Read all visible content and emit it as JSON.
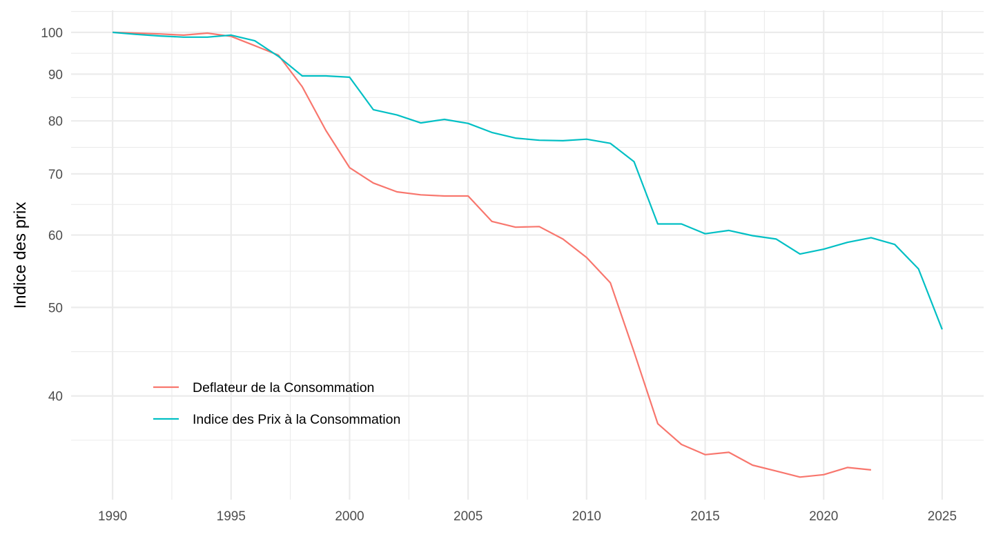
{
  "chart_data": {
    "type": "line",
    "title": "",
    "xlabel": "",
    "ylabel": "Indice des prix",
    "y_scale": "log",
    "xlim": [
      1988.25,
      2026.75
    ],
    "ylim": [
      30.8,
      105.7
    ],
    "x_ticks": [
      1990,
      1995,
      2000,
      2005,
      2010,
      2015,
      2020,
      2025
    ],
    "x_tick_labels": [
      "1990",
      "1995",
      "2000",
      "2005",
      "2010",
      "2015",
      "2020",
      "2025"
    ],
    "y_ticks": [
      40,
      50,
      60,
      70,
      80,
      90,
      100
    ],
    "y_tick_labels": [
      "40",
      "50",
      "60",
      "70",
      "80",
      "90",
      "100"
    ],
    "grid": true,
    "legend_position": "bottom-left (inside)",
    "series": [
      {
        "name": "Deflateur de la Consommation",
        "color": "#F8766D",
        "x": [
          1990,
          1991,
          1992,
          1993,
          1994,
          1995,
          1996,
          1997,
          1998,
          1999,
          2000,
          2001,
          2002,
          2003,
          2004,
          2005,
          2006,
          2007,
          2008,
          2009,
          2010,
          2011,
          2012,
          2013,
          2014,
          2015,
          2016,
          2017,
          2018,
          2019,
          2020,
          2021,
          2022
        ],
        "values": [
          100,
          99.8,
          99.6,
          99.3,
          99.8,
          99.0,
          96.7,
          94.4,
          87.2,
          78.1,
          71.1,
          68.4,
          66.9,
          66.4,
          66.2,
          66.2,
          62.1,
          61.2,
          61.3,
          59.4,
          56.7,
          53.2,
          44.7,
          37.3,
          35.4,
          34.5,
          34.7,
          33.6,
          33.1,
          32.6,
          32.8,
          33.4,
          33.2
        ]
      },
      {
        "name": "Indice des Prix à la Consommation",
        "color": "#00BFC4",
        "x": [
          1990,
          1991,
          1992,
          1993,
          1994,
          1995,
          1996,
          1997,
          1998,
          1999,
          2000,
          2001,
          2002,
          2003,
          2004,
          2005,
          2006,
          2007,
          2008,
          2009,
          2010,
          2011,
          2012,
          2013,
          2014,
          2015,
          2016,
          2017,
          2018,
          2019,
          2020,
          2021,
          2022,
          2023,
          2024,
          2025
        ],
        "values": [
          100,
          99.5,
          99.1,
          98.8,
          98.8,
          99.3,
          97.9,
          94.1,
          89.6,
          89.6,
          89.3,
          82.3,
          81.2,
          79.6,
          80.3,
          79.5,
          77.7,
          76.6,
          76.2,
          76.1,
          76.4,
          75.6,
          72.2,
          61.7,
          61.7,
          60.2,
          60.7,
          59.9,
          59.4,
          57.2,
          57.9,
          58.9,
          59.6,
          58.6,
          55.1,
          47.3
        ]
      }
    ]
  }
}
